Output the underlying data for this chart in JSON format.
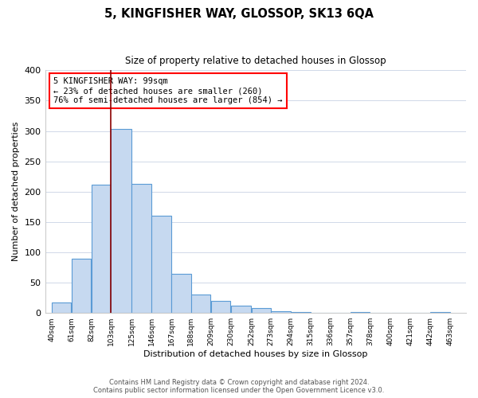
{
  "title": "5, KINGFISHER WAY, GLOSSOP, SK13 6QA",
  "subtitle": "Size of property relative to detached houses in Glossop",
  "xlabel": "Distribution of detached houses by size in Glossop",
  "ylabel": "Number of detached properties",
  "footnote1": "Contains HM Land Registry data © Crown copyright and database right 2024.",
  "footnote2": "Contains public sector information licensed under the Open Government Licence v3.0.",
  "bar_left_edges": [
    40,
    61,
    82,
    103,
    125,
    146,
    167,
    188,
    209,
    230,
    252,
    273,
    294,
    315,
    336,
    357,
    378,
    400,
    421,
    442
  ],
  "bar_widths": [
    21,
    21,
    21,
    22,
    21,
    21,
    21,
    21,
    21,
    22,
    21,
    21,
    21,
    21,
    21,
    21,
    22,
    21,
    21,
    21
  ],
  "bar_heights": [
    17,
    90,
    211,
    304,
    213,
    160,
    64,
    31,
    20,
    12,
    8,
    3,
    1,
    0,
    0,
    2,
    0,
    0,
    0,
    2
  ],
  "bar_color": "#c6d9f0",
  "bar_edge_color": "#5a9bd5",
  "tick_labels": [
    "40sqm",
    "61sqm",
    "82sqm",
    "103sqm",
    "125sqm",
    "146sqm",
    "167sqm",
    "188sqm",
    "209sqm",
    "230sqm",
    "252sqm",
    "273sqm",
    "294sqm",
    "315sqm",
    "336sqm",
    "357sqm",
    "378sqm",
    "400sqm",
    "421sqm",
    "442sqm",
    "463sqm"
  ],
  "tick_positions": [
    40,
    61,
    82,
    103,
    125,
    146,
    167,
    188,
    209,
    230,
    252,
    273,
    294,
    315,
    336,
    357,
    378,
    400,
    421,
    442,
    463
  ],
  "ylim": [
    0,
    400
  ],
  "yticks": [
    0,
    50,
    100,
    150,
    200,
    250,
    300,
    350,
    400
  ],
  "xlim": [
    33,
    480
  ],
  "property_line_x": 103,
  "annotation_title": "5 KINGFISHER WAY: 99sqm",
  "annotation_line1": "← 23% of detached houses are smaller (260)",
  "annotation_line2": "76% of semi-detached houses are larger (854) →",
  "bg_color": "#ffffff",
  "grid_color": "#d0d8e8"
}
